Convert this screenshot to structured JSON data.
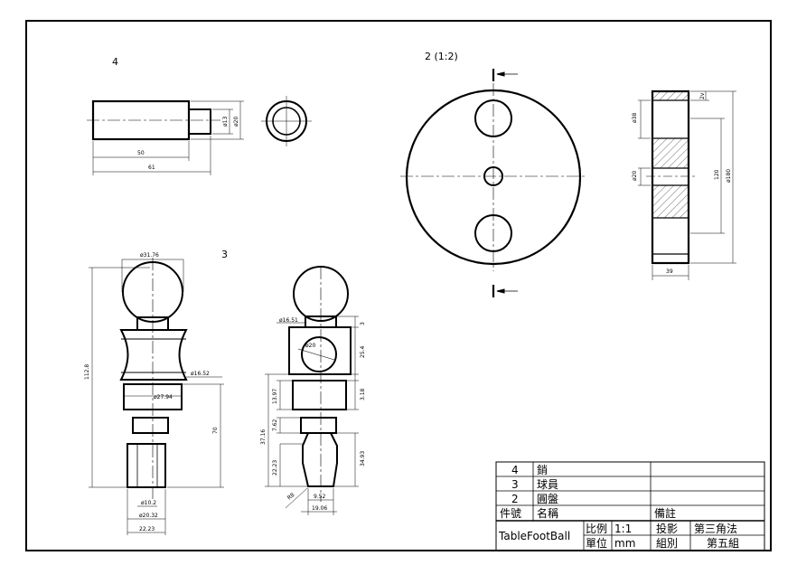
{
  "views": {
    "v4_label": "4",
    "v2_label": "2 (1:2)",
    "v3_label": "3"
  },
  "dims": {
    "d4_50": "50",
    "d4_61": "61",
    "d4_phi13": "ø13",
    "d4_phi20": "ø20",
    "d2_phi38": "ø38",
    "d2_phi20": "ø20",
    "d2_2v": "2v",
    "d2_120": "120",
    "d2_phi180": "ø180",
    "d2_39": "39",
    "d3_phi3176": "ø31.76",
    "d3_1128": "112.8",
    "d3_phi1652": "ø16.52",
    "d3_phi2794": "ø27.94",
    "d3_70": "70",
    "d3_phi102": "ø10.2",
    "d3_phi2032": "ø20.32",
    "d3_2223": "22.23",
    "d3_phi1651": "ø16.51",
    "d3_phi20": "ø20",
    "d3_3": "3",
    "d3_254": "25.4",
    "d3_318": "3.18",
    "d3_1397": "13.97",
    "d3_3716": "37.16",
    "d3_762": "7.62",
    "d3_2223b": "22.23",
    "d3_3493": "34.93",
    "d3_r8": "R8",
    "d3_952": "9.52",
    "d3_1906": "19.06"
  },
  "title_block": {
    "rows": [
      {
        "no": "4",
        "name": "銷"
      },
      {
        "no": "3",
        "name": "球員"
      },
      {
        "no": "2",
        "name": "圓盤"
      }
    ],
    "header_no": "件號",
    "header_name": "名稱",
    "header_note": "備註",
    "title": "TableFootBall",
    "scale_label": "比例",
    "scale_value": "1:1",
    "projection_label": "投影",
    "projection_value": "第三角法",
    "unit_label": "單位",
    "unit_value": "mm",
    "group_label": "組別",
    "group_value": "第五組"
  }
}
